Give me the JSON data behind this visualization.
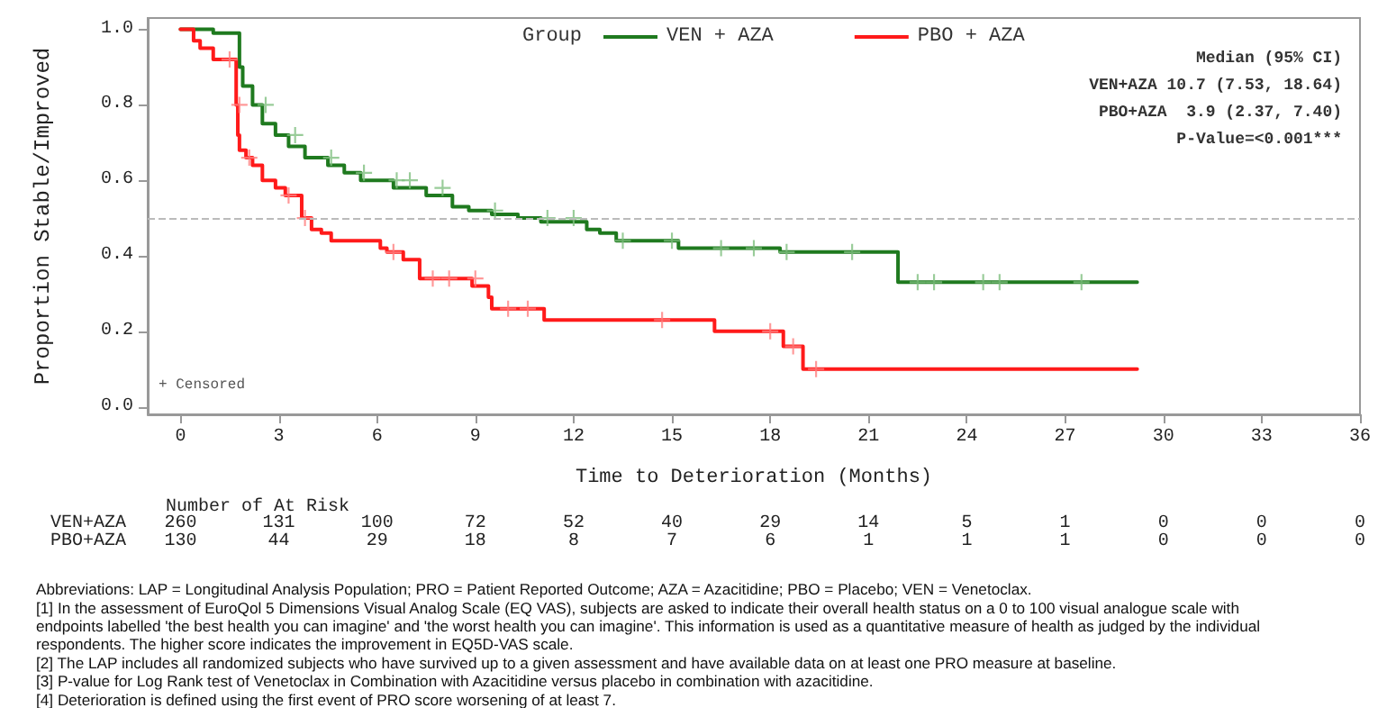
{
  "chart_data": {
    "type": "step",
    "xlabel": "Time to Deterioration (Months)",
    "ylabel": "Proportion Stable/Improved",
    "legend_title": "Group",
    "legend": "top",
    "xlim": [
      -1,
      36
    ],
    "ylim": [
      -0.02,
      1.03
    ],
    "xticks": [
      0,
      3,
      6,
      9,
      12,
      15,
      18,
      21,
      24,
      27,
      30,
      33,
      36
    ],
    "yticks": [
      {
        "value": 0,
        "label": "0.0"
      },
      {
        "value": 0.2,
        "label": "0.2"
      },
      {
        "value": 0.4,
        "label": "0.4"
      },
      {
        "value": 0.6,
        "label": "0.6"
      },
      {
        "value": 0.8,
        "label": "0.8"
      },
      {
        "value": 1,
        "label": "1.0"
      }
    ],
    "ref_lines": [
      {
        "axis": "y",
        "value": 0.5,
        "color": "#bbbbbb",
        "line_style": "dashed"
      }
    ],
    "series": [
      {
        "name": "VEN + AZA",
        "color": "#1f7a1f",
        "x": [
          0,
          1.0,
          1.8,
          1.9,
          2.2,
          2.5,
          2.9,
          3.3,
          3.8,
          4.5,
          5.0,
          5.5,
          6.5,
          7.5,
          8.3,
          8.8,
          9.5,
          10.3,
          11.0,
          12.4,
          12.8,
          13.3,
          15.2,
          18.3,
          21.9,
          29.2
        ],
        "values": [
          1,
          0.99,
          0.9,
          0.85,
          0.8,
          0.75,
          0.72,
          0.69,
          0.66,
          0.64,
          0.62,
          0.6,
          0.58,
          0.56,
          0.53,
          0.52,
          0.51,
          0.5,
          0.49,
          0.47,
          0.46,
          0.44,
          0.42,
          0.41,
          0.33,
          0.33
        ]
      },
      {
        "name": "PBO + AZA",
        "color": "#ff1a1a",
        "x": [
          0,
          0.4,
          0.6,
          1.0,
          1.4,
          1.7,
          1.75,
          1.8,
          2.0,
          2.2,
          2.5,
          2.9,
          3.2,
          3.7,
          4.0,
          4.3,
          4.6,
          6.1,
          6.3,
          6.8,
          7.3,
          8.9,
          9.4,
          9.5,
          11.1,
          16.3,
          18.4,
          19.0,
          29.2
        ],
        "values": [
          1,
          0.97,
          0.95,
          0.92,
          0.92,
          0.8,
          0.72,
          0.68,
          0.66,
          0.64,
          0.6,
          0.58,
          0.56,
          0.5,
          0.47,
          0.46,
          0.44,
          0.42,
          0.41,
          0.39,
          0.34,
          0.32,
          0.29,
          0.26,
          0.23,
          0.2,
          0.16,
          0.1,
          0.1
        ]
      },
      {
        "type": "scatter",
        "marker": "cross",
        "color": "#7fbf7f",
        "x": [
          2.6,
          3.5,
          4.6,
          5.6,
          6.6,
          7.0,
          8.0,
          9.6,
          11.2,
          12.0,
          13.5,
          15.0,
          16.5,
          17.5,
          18.5,
          20.5,
          22.5,
          23.0,
          24.5,
          25.0,
          27.5
        ],
        "values": [
          0.8,
          0.72,
          0.66,
          0.62,
          0.6,
          0.6,
          0.58,
          0.52,
          0.5,
          0.5,
          0.44,
          0.44,
          0.42,
          0.42,
          0.41,
          0.41,
          0.33,
          0.33,
          0.33,
          0.33,
          0.33
        ]
      },
      {
        "type": "scatter",
        "marker": "cross",
        "color": "#ff8080",
        "x": [
          1.5,
          1.8,
          2.1,
          3.3,
          3.8,
          6.5,
          7.7,
          8.2,
          9.0,
          10.0,
          10.6,
          14.7,
          18.0,
          18.7,
          19.4
        ],
        "values": [
          0.92,
          0.8,
          0.66,
          0.56,
          0.5,
          0.41,
          0.34,
          0.34,
          0.34,
          0.26,
          0.26,
          0.23,
          0.2,
          0.16,
          0.1
        ]
      }
    ],
    "annotations": [
      "+ Censored",
      "Median (95% CI)",
      "VEN+AZA 10.7 (7.53, 18.64)",
      "PBO+AZA  3.9 (2.37, 7.40)",
      "P-Value=<0.001***",
      "Number of At Risk",
      "VEN+AZA 260 131 100 72 52 40 29 14 5 1 0 0 0",
      "PBO+AZA 130 44 29 18 8 7 6 1 1 1 0 0 0",
      "Abbreviations: LAP = Longitudinal Analysis Population; PRO = Patient Reported Outcome; AZA = Azacitidine; PBO = Placebo; VEN = Venetoclax.",
      "[1] In the assessment of EuroQol 5 Dimensions Visual Analog Scale (EQ VAS), subjects are asked to indicate their overall health status on a 0 to 100 visual analogue scale with endpoints labelled 'the best health you can imagine' and 'the worst health you can imagine'. This information is used as a quantitative measure of health as judged by the individual respondents. The higher score indicates the improvement in EQ5D-VAS scale.",
      "[2] The LAP includes all randomized subjects who have survived up to a given assessment and have available data on at least one PRO measure at baseline.",
      "[3] P-value for Log Rank test of Venetoclax in Combination with Azacitidine versus placebo in combination with azacitidine.",
      "[4] Deterioration is defined using the first event of PRO score worsening of at least 7."
    ]
  }
}
